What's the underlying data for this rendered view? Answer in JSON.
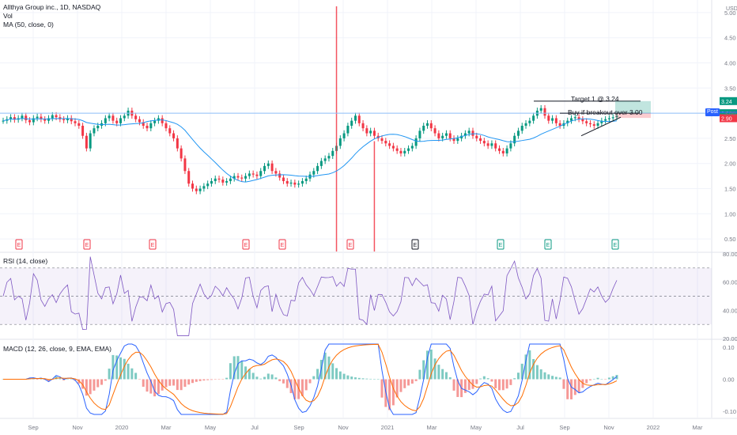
{
  "legend": {
    "symbol": "Allthya Group inc., 1D, NASDAQ",
    "volume": "Vol",
    "ma": "MA (50, close, 0)",
    "rsi": "RSI (14, close)",
    "macd": "MACD (12, 26, close, 9, EMA, EMA)"
  },
  "price_axis": {
    "currency": "USD",
    "ticks": [
      "5.00",
      "4.50",
      "4.00",
      "3.50",
      "3.00",
      "2.50",
      "2.00",
      "1.50",
      "1.00",
      "0.50"
    ],
    "tags": [
      {
        "text": "3.24",
        "color": "#089981"
      },
      {
        "text": "3.00",
        "color": "#089981"
      },
      {
        "text": "2.95",
        "color": "#2962ff"
      },
      {
        "text": "2.93",
        "color": "#089981"
      },
      {
        "text": "2.90",
        "color": "#f23645"
      }
    ],
    "post_label": "Post"
  },
  "rsi_axis": {
    "ticks": [
      "80.00",
      "60.00",
      "40.00",
      "20.00"
    ]
  },
  "macd_axis": {
    "ticks": [
      "0.10",
      "0.00",
      "-0.10"
    ]
  },
  "time_axis": {
    "labels": [
      "Sep",
      "Nov",
      "2020",
      "Mar",
      "May",
      "Jul",
      "Sep",
      "Nov",
      "2021",
      "Mar",
      "May",
      "Jul",
      "Sep",
      "Nov",
      "2022",
      "Mar"
    ]
  },
  "annotations": {
    "target": "Target 1 @ 3.24",
    "entry": "Buy if breakout over 3.00"
  },
  "earnings_markers": [
    "E",
    "E",
    "E",
    "E",
    "E",
    "E",
    "E",
    "E",
    "E",
    "E",
    "E",
    "E"
  ],
  "colors": {
    "up": "#089981",
    "down": "#f23645",
    "ma": "#2196f3",
    "rsi": "#7e57c2",
    "macd": "#2962ff",
    "signal": "#ff6d00",
    "grid": "#f0f3fa"
  },
  "chart_data": {
    "type": "candlestick",
    "price_range": [
      0.25,
      5.25
    ],
    "key_levels": {
      "resistance": 3.0,
      "target": 3.24,
      "last": 2.95
    },
    "rsi_range": [
      20,
      80
    ],
    "rsi_bands": [
      30,
      50,
      70
    ],
    "macd_range": [
      -0.12,
      0.12
    ],
    "close": [
      2.85,
      2.88,
      2.92,
      2.87,
      2.9,
      2.95,
      2.86,
      2.82,
      2.9,
      2.93,
      2.88,
      2.85,
      2.9,
      2.96,
      2.92,
      2.88,
      2.86,
      2.9,
      2.84,
      2.8,
      2.75,
      2.55,
      2.3,
      2.6,
      2.7,
      2.75,
      2.8,
      2.9,
      2.95,
      2.85,
      2.8,
      2.9,
      2.95,
      3.05,
      2.95,
      2.88,
      2.82,
      2.75,
      2.7,
      2.8,
      2.85,
      2.9,
      2.8,
      2.7,
      2.6,
      2.5,
      2.3,
      2.1,
      1.85,
      1.6,
      1.5,
      1.45,
      1.5,
      1.55,
      1.6,
      1.65,
      1.7,
      1.68,
      1.62,
      1.65,
      1.7,
      1.75,
      1.72,
      1.7,
      1.75,
      1.8,
      1.78,
      1.75,
      1.85,
      1.95,
      2.0,
      1.85,
      1.8,
      1.72,
      1.65,
      1.6,
      1.62,
      1.58,
      1.6,
      1.65,
      1.7,
      1.78,
      1.85,
      1.95,
      2.05,
      2.1,
      2.15,
      2.25,
      2.35,
      2.5,
      2.6,
      2.75,
      2.85,
      2.95,
      2.8,
      2.7,
      2.6,
      2.65,
      2.55,
      2.5,
      2.45,
      2.4,
      2.35,
      2.3,
      2.25,
      2.2,
      2.25,
      2.3,
      2.35,
      2.5,
      2.65,
      2.75,
      2.8,
      2.7,
      2.6,
      2.5,
      2.55,
      2.6,
      2.5,
      2.45,
      2.5,
      2.55,
      2.6,
      2.65,
      2.55,
      2.5,
      2.45,
      2.4,
      2.35,
      2.4,
      2.3,
      2.25,
      2.2,
      2.3,
      2.4,
      2.55,
      2.65,
      2.75,
      2.8,
      2.85,
      2.95,
      3.05,
      3.1,
      2.95,
      2.85,
      2.9,
      2.8,
      2.75,
      2.8,
      2.85,
      2.9,
      2.92,
      2.88,
      2.84,
      2.8,
      2.78,
      2.75,
      2.8,
      2.85,
      2.88,
      2.9,
      2.92,
      2.95
    ],
    "volume_spikes": [
      {
        "index": 88,
        "volume": 1.0
      },
      {
        "index": 98,
        "volume": 0.45
      }
    ],
    "series": [
      {
        "name": "MA (50, close, 0)",
        "color": "#2196f3"
      },
      {
        "name": "RSI (14, close)",
        "color": "#7e57c2"
      },
      {
        "name": "MACD",
        "color": "#2962ff"
      },
      {
        "name": "Signal",
        "color": "#ff6d00"
      }
    ]
  }
}
